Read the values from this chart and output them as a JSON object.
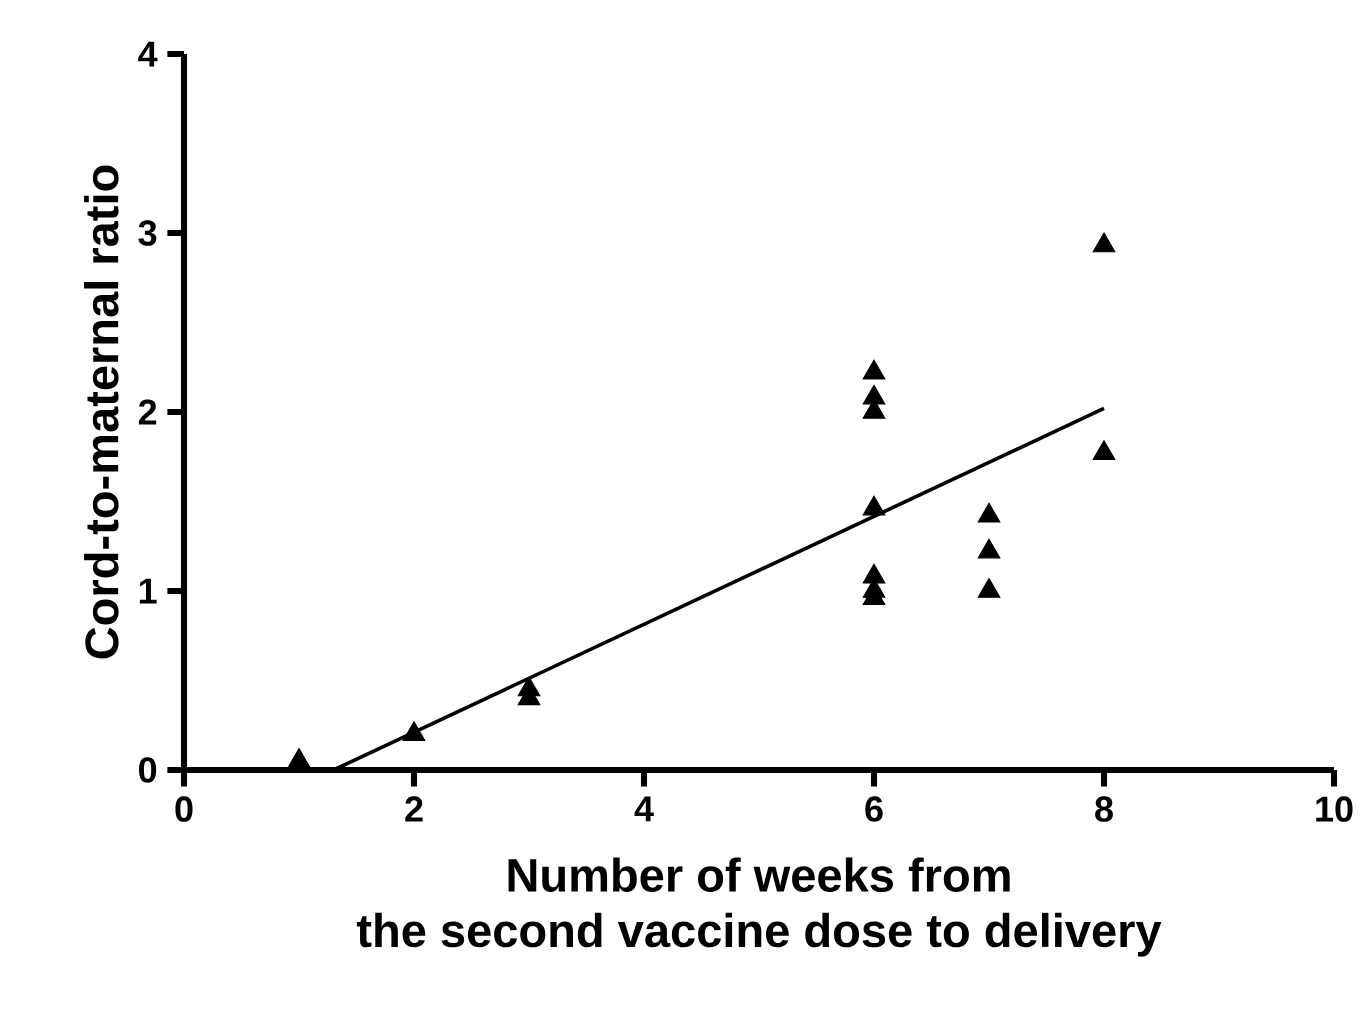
{
  "chart_data": {
    "type": "scatter",
    "xlabel": "Number of weeks from\nthe second vaccine dose to delivery",
    "ylabel": "Cord-to-maternal ratio",
    "xlim": [
      0,
      10
    ],
    "ylim": [
      0,
      4
    ],
    "xticks": [
      0,
      2,
      4,
      6,
      8,
      10
    ],
    "yticks": [
      0,
      1,
      2,
      3,
      4
    ],
    "marker": "triangle",
    "grid": false,
    "series": [
      {
        "color": "#000000",
        "x": [
          1,
          2,
          3,
          3,
          6,
          6,
          6,
          6,
          6,
          6,
          6,
          7,
          7,
          7,
          8,
          8
        ],
        "values": [
          0.05,
          0.2,
          0.45,
          0.4,
          2.22,
          2.08,
          2.0,
          1.46,
          1.08,
          1.0,
          0.96,
          1.42,
          1.22,
          1.0,
          2.93,
          1.77
        ]
      },
      {
        "type": "line",
        "marker": "none",
        "color": "#000000",
        "x": [
          1.3,
          8
        ],
        "values": [
          0,
          2.02
        ]
      }
    ]
  }
}
